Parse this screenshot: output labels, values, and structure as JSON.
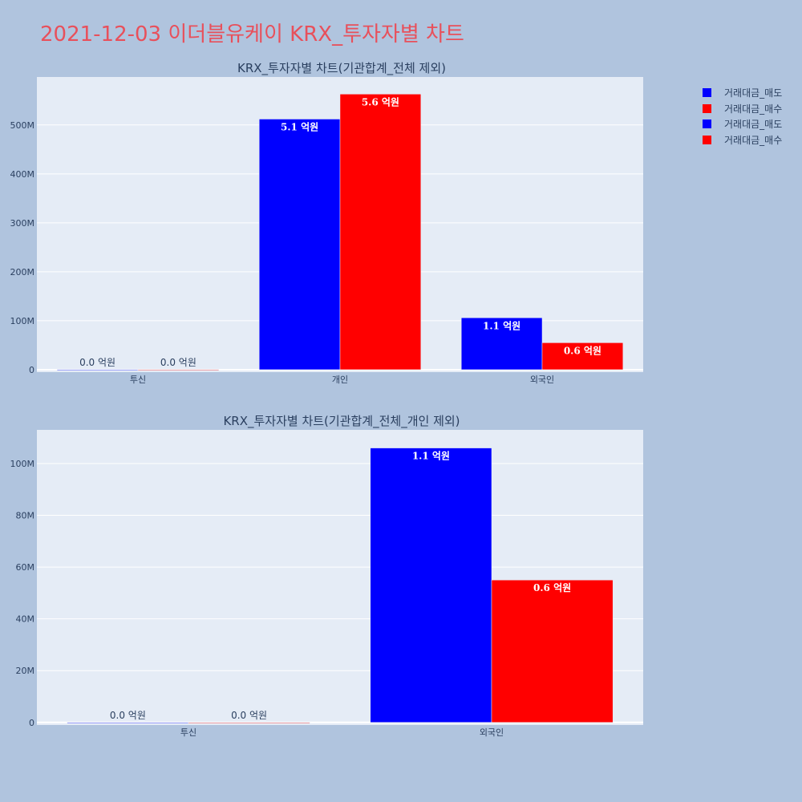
{
  "page": {
    "title": "2021-12-03 이더블유케이 KRX_투자자별 차트"
  },
  "legend": {
    "items": [
      {
        "label": "거래대금_매도",
        "color": "#0000ff"
      },
      {
        "label": "거래대금_매수",
        "color": "#ff0000"
      },
      {
        "label": "거래대금_매도",
        "color": "#0000ff"
      },
      {
        "label": "거래대금_매수",
        "color": "#ff0000"
      }
    ]
  },
  "colors": {
    "plot_bg": "#e5ecf6",
    "page_bg": "#b0c4de",
    "title": "#e8505b",
    "sell": "#0000ff",
    "buy": "#ff0000"
  },
  "chart_data": [
    {
      "type": "bar",
      "title": "KRX_투자자별 차트(기관합계_전체 제외)",
      "categories": [
        "투신",
        "개인",
        "외국인"
      ],
      "series": [
        {
          "name": "거래대금_매도",
          "color": "#0000ff",
          "values": [
            0,
            512000000,
            106000000
          ],
          "labels": [
            "0.0 억원",
            "5.1 억원",
            "1.1 억원"
          ]
        },
        {
          "name": "거래대금_매수",
          "color": "#ff0000",
          "values": [
            0,
            563000000,
            55000000
          ],
          "labels": [
            "0.0 억원",
            "5.6 억원",
            "0.6 억원"
          ]
        }
      ],
      "ylim": [
        -5000000,
        598000000
      ],
      "yticks": [
        0,
        100000000,
        200000000,
        300000000,
        400000000,
        500000000
      ],
      "ytick_labels": [
        "0",
        "100M",
        "200M",
        "300M",
        "400M",
        "500M"
      ],
      "grid": true
    },
    {
      "type": "bar",
      "title": "KRX_투자자별 차트(기관합계_전체_개인 제외)",
      "categories": [
        "투신",
        "외국인"
      ],
      "series": [
        {
          "name": "거래대금_매도",
          "color": "#0000ff",
          "values": [
            0,
            106000000
          ],
          "labels": [
            "0.0 억원",
            "1.1 억원"
          ]
        },
        {
          "name": "거래대금_매수",
          "color": "#ff0000",
          "values": [
            0,
            55000000
          ],
          "labels": [
            "0.0 억원",
            "0.6 억원"
          ]
        }
      ],
      "ylim": [
        -1000000,
        113000000
      ],
      "yticks": [
        0,
        20000000,
        40000000,
        60000000,
        80000000,
        100000000
      ],
      "ytick_labels": [
        "0",
        "20M",
        "40M",
        "60M",
        "80M",
        "100M"
      ],
      "grid": true
    }
  ]
}
